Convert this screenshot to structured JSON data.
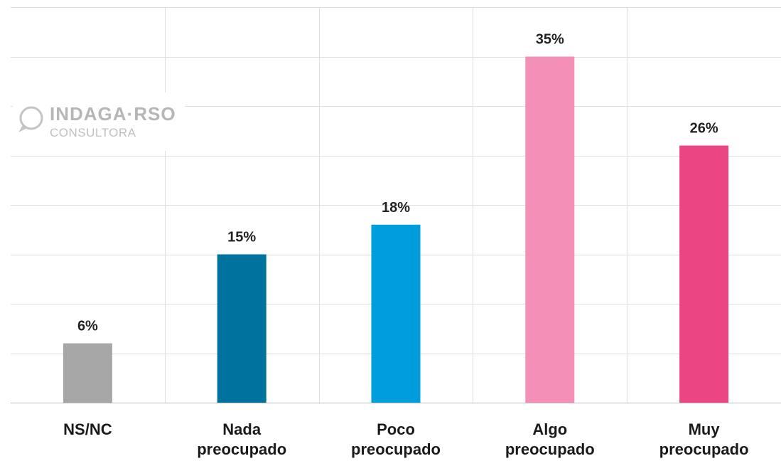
{
  "chart_data": {
    "type": "bar",
    "categories": [
      "NS/NC",
      "Nada preocupado",
      "Poco preocupado",
      "Algo preocupado",
      "Muy preocupado"
    ],
    "category_lines": [
      [
        "NS/NC"
      ],
      [
        "Nada",
        "preocupado"
      ],
      [
        "Poco",
        "preocupado"
      ],
      [
        "Algo",
        "preocupado"
      ],
      [
        "Muy",
        "preocupado"
      ]
    ],
    "values": [
      6,
      15,
      18,
      35,
      26
    ],
    "value_labels": [
      "6%",
      "15%",
      "18%",
      "35%",
      "26%"
    ],
    "colors": [
      "#a7a7a7",
      "#00729e",
      "#009ddc",
      "#f48fb7",
      "#ec4584"
    ],
    "ylim": [
      0,
      40
    ],
    "grid": true,
    "legend": "none"
  },
  "logo": {
    "main": "INDAGA·RSO",
    "sub": "CONSULTORA"
  }
}
